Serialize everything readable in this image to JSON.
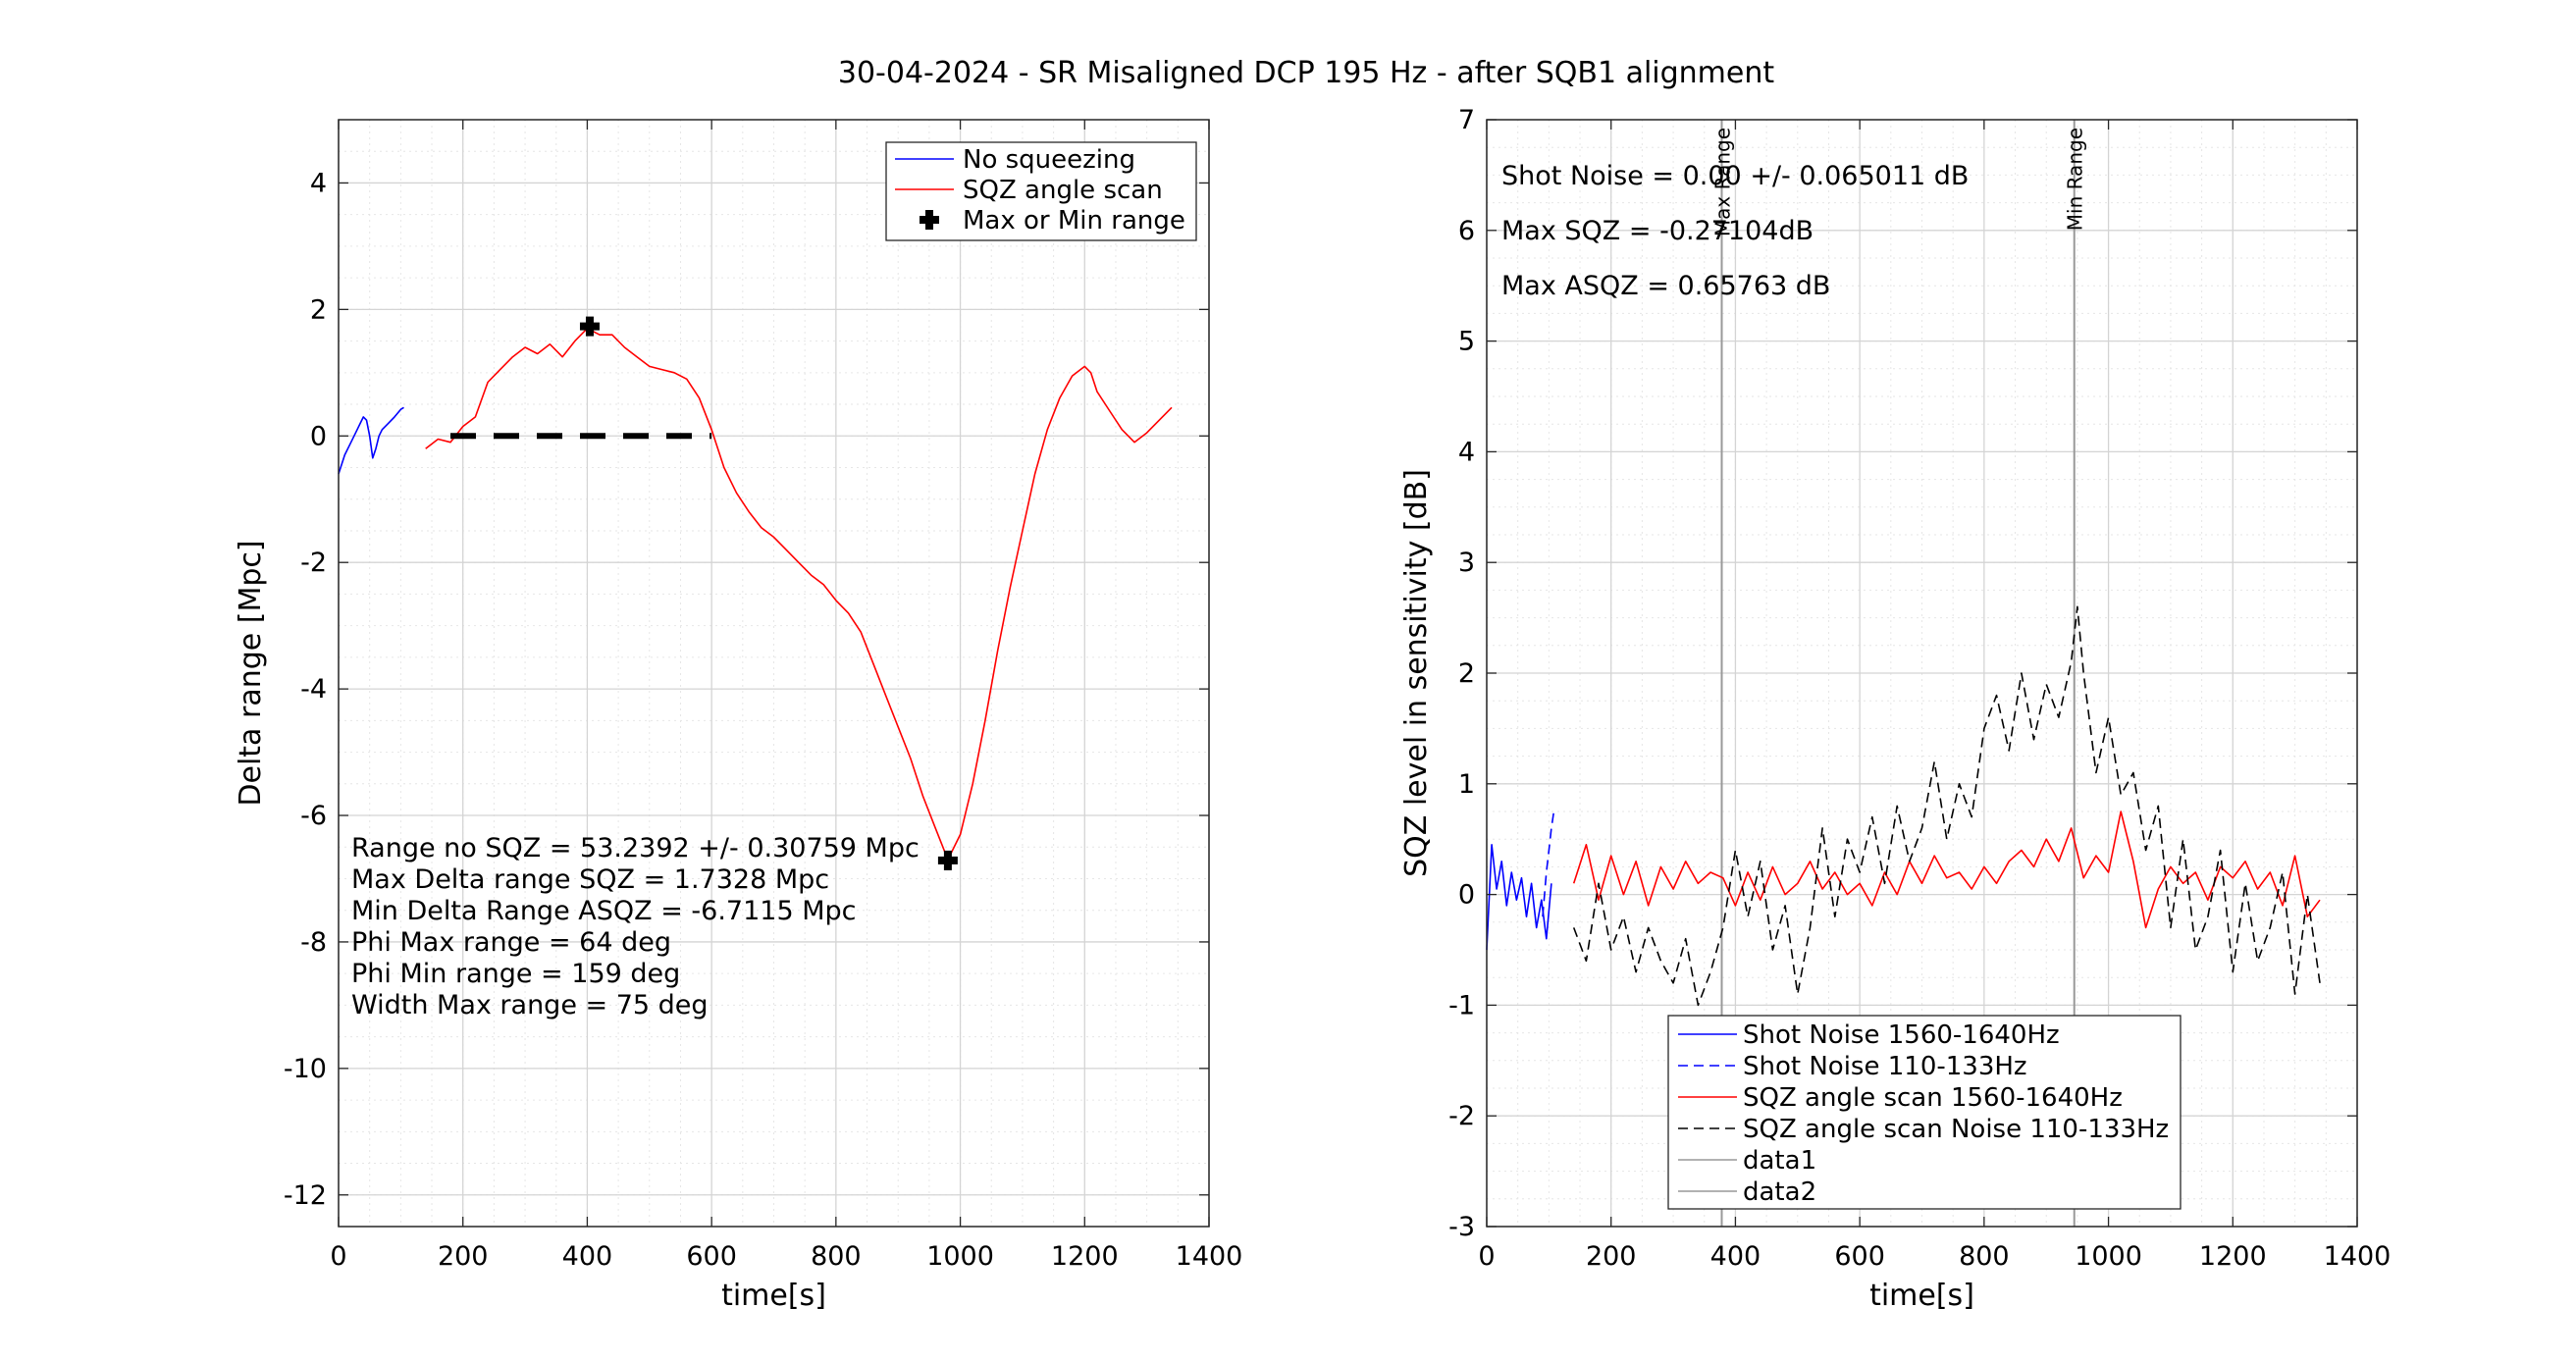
{
  "figure_title": "30-04-2024 - SR Misaligned DCP 195 Hz - after SQB1 alignment",
  "chart_data": [
    {
      "type": "line",
      "xlabel": "time[s]",
      "ylabel": "Delta range [Mpc]",
      "xlim": [
        0,
        1400
      ],
      "ylim": [
        -12.5,
        5
      ],
      "xticks": [
        0,
        200,
        400,
        600,
        800,
        1000,
        1200,
        1400
      ],
      "yticks": [
        -12,
        -10,
        -8,
        -6,
        -4,
        -2,
        0,
        2,
        4
      ],
      "grid": "on-with-minor",
      "legend_position": "top-right",
      "legend": [
        {
          "label": "No squeezing",
          "color": "#0000ff",
          "style": "solid"
        },
        {
          "label": "SQZ angle  scan",
          "color": "#ff0000",
          "style": "solid"
        },
        {
          "label": "Max or Min range",
          "color": "#000000",
          "style": "plus-marker"
        }
      ],
      "series": [
        {
          "name": "No squeezing",
          "color": "#0000ff",
          "x": [
            0,
            10,
            20,
            30,
            40,
            45,
            50,
            55,
            60,
            65,
            70,
            80,
            90,
            100,
            105
          ],
          "y": [
            -0.6,
            -0.3,
            -0.1,
            0.1,
            0.3,
            0.25,
            0.0,
            -0.35,
            -0.2,
            0.0,
            0.1,
            0.2,
            0.3,
            0.42,
            0.45
          ]
        },
        {
          "name": "SQZ angle  scan",
          "color": "#ff0000",
          "x": [
            140,
            160,
            180,
            200,
            220,
            240,
            260,
            280,
            300,
            320,
            340,
            360,
            380,
            400,
            420,
            440,
            460,
            480,
            500,
            520,
            540,
            560,
            580,
            600,
            620,
            640,
            660,
            680,
            700,
            720,
            740,
            760,
            780,
            800,
            820,
            840,
            860,
            880,
            900,
            920,
            940,
            960,
            980,
            1000,
            1020,
            1040,
            1060,
            1080,
            1100,
            1120,
            1140,
            1160,
            1180,
            1200,
            1210,
            1220,
            1240,
            1260,
            1280,
            1300,
            1320,
            1340
          ],
          "y": [
            -0.2,
            -0.05,
            -0.1,
            0.15,
            0.3,
            0.85,
            1.05,
            1.25,
            1.4,
            1.3,
            1.45,
            1.25,
            1.5,
            1.7,
            1.6,
            1.6,
            1.4,
            1.25,
            1.1,
            1.05,
            1.0,
            0.9,
            0.6,
            0.1,
            -0.5,
            -0.9,
            -1.2,
            -1.45,
            -1.6,
            -1.8,
            -2.0,
            -2.2,
            -2.35,
            -2.6,
            -2.8,
            -3.1,
            -3.6,
            -4.1,
            -4.6,
            -5.1,
            -5.7,
            -6.2,
            -6.7,
            -6.3,
            -5.5,
            -4.5,
            -3.4,
            -2.4,
            -1.5,
            -0.6,
            0.1,
            0.6,
            0.95,
            1.1,
            1.0,
            0.7,
            0.4,
            0.1,
            -0.1,
            0.05,
            0.25,
            0.45
          ]
        },
        {
          "name": "Width",
          "color": "#000000",
          "style": "dashed",
          "x": [
            180,
            600
          ],
          "y": [
            0,
            0
          ]
        }
      ],
      "markers": [
        {
          "x": 404,
          "y": 1.7328
        },
        {
          "x": 980,
          "y": -6.7115
        }
      ],
      "annotations": [
        "Range no SQZ = 53.2392 +/- 0.30759 Mpc",
        "Max Delta range SQZ = 1.7328 Mpc",
        "Min Delta Range ASQZ = -6.7115 Mpc",
        "Phi Max range = 64 deg",
        "Phi Min range = 159 deg",
        "Width Max range = 75 deg"
      ]
    },
    {
      "type": "line",
      "xlabel": "time[s]",
      "ylabel": "SQZ level in sensitivity [dB]",
      "xlim": [
        0,
        1400
      ],
      "ylim": [
        -3,
        7
      ],
      "xticks": [
        0,
        200,
        400,
        600,
        800,
        1000,
        1200,
        1400
      ],
      "yticks": [
        -3,
        -2,
        -1,
        0,
        1,
        2,
        3,
        4,
        5,
        6,
        7
      ],
      "grid": "on-with-minor",
      "legend_position": "bottom-center",
      "legend": [
        {
          "label": "Shot Noise 1560-1640Hz",
          "color": "#0000ff",
          "style": "solid"
        },
        {
          "label": "Shot Noise 110-133Hz",
          "color": "#0000ff",
          "style": "dashed"
        },
        {
          "label": "SQZ angle scan 1560-1640Hz",
          "color": "#ff0000",
          "style": "solid"
        },
        {
          "label": "SQZ angle scan Noise 110-133Hz",
          "color": "#000000",
          "style": "dashed"
        },
        {
          "label": "data1",
          "color": "#999999",
          "style": "solid"
        },
        {
          "label": "data2",
          "color": "#999999",
          "style": "solid"
        }
      ],
      "vlines": [
        {
          "x": 378,
          "label": "Max Range",
          "color": "#999999"
        },
        {
          "x": 945,
          "label": "Min Range",
          "color": "#999999"
        }
      ],
      "series": [
        {
          "name": "Shot Noise 1560-1640Hz",
          "color": "#0000ff",
          "style": "solid",
          "x": [
            0,
            8,
            16,
            24,
            32,
            40,
            48,
            56,
            64,
            72,
            80,
            88,
            96,
            104
          ],
          "y": [
            -0.5,
            0.45,
            0.05,
            0.3,
            -0.1,
            0.2,
            -0.05,
            0.15,
            -0.2,
            0.1,
            -0.3,
            -0.05,
            -0.4,
            0.1
          ]
        },
        {
          "name": "Shot Noise 110-133Hz",
          "color": "#0000ff",
          "style": "dashed",
          "x": [
            90,
            96,
            100,
            104,
            108
          ],
          "y": [
            -0.2,
            0.2,
            0.4,
            0.6,
            0.75
          ]
        },
        {
          "name": "SQZ angle scan 1560-1640Hz",
          "color": "#ff0000",
          "style": "solid",
          "x": [
            140,
            160,
            180,
            200,
            220,
            240,
            260,
            280,
            300,
            320,
            340,
            360,
            380,
            400,
            420,
            440,
            460,
            480,
            500,
            520,
            540,
            560,
            580,
            600,
            620,
            640,
            660,
            680,
            700,
            720,
            740,
            760,
            780,
            800,
            820,
            840,
            860,
            880,
            900,
            920,
            940,
            960,
            980,
            1000,
            1020,
            1040,
            1060,
            1080,
            1100,
            1120,
            1140,
            1160,
            1180,
            1200,
            1220,
            1240,
            1260,
            1280,
            1300,
            1320,
            1340
          ],
          "y": [
            0.1,
            0.45,
            -0.05,
            0.35,
            0.0,
            0.3,
            -0.1,
            0.25,
            0.05,
            0.3,
            0.1,
            0.2,
            0.15,
            -0.1,
            0.2,
            -0.05,
            0.25,
            0.0,
            0.1,
            0.3,
            0.05,
            0.2,
            0.0,
            0.1,
            -0.1,
            0.2,
            0.0,
            0.3,
            0.1,
            0.35,
            0.15,
            0.2,
            0.05,
            0.25,
            0.1,
            0.3,
            0.4,
            0.25,
            0.5,
            0.3,
            0.6,
            0.15,
            0.35,
            0.2,
            0.75,
            0.3,
            -0.3,
            0.05,
            0.25,
            0.1,
            0.2,
            -0.05,
            0.25,
            0.15,
            0.3,
            0.05,
            0.2,
            -0.1,
            0.35,
            -0.2,
            -0.05
          ]
        },
        {
          "name": "SQZ angle scan Noise 110-133Hz",
          "color": "#000000",
          "style": "dashed",
          "x": [
            140,
            160,
            180,
            200,
            220,
            240,
            260,
            280,
            300,
            320,
            340,
            360,
            380,
            400,
            420,
            440,
            460,
            480,
            500,
            520,
            540,
            560,
            580,
            600,
            620,
            640,
            660,
            680,
            700,
            720,
            740,
            760,
            780,
            800,
            820,
            840,
            860,
            880,
            900,
            920,
            940,
            950,
            960,
            980,
            1000,
            1020,
            1040,
            1060,
            1080,
            1100,
            1120,
            1140,
            1160,
            1180,
            1200,
            1220,
            1240,
            1260,
            1280,
            1300,
            1320,
            1340
          ],
          "y": [
            -0.3,
            -0.6,
            0.1,
            -0.5,
            -0.2,
            -0.7,
            -0.3,
            -0.6,
            -0.8,
            -0.4,
            -1.0,
            -0.7,
            -0.3,
            0.4,
            -0.2,
            0.3,
            -0.5,
            -0.1,
            -0.9,
            -0.3,
            0.6,
            -0.2,
            0.5,
            0.2,
            0.7,
            0.1,
            0.8,
            0.3,
            0.6,
            1.2,
            0.5,
            1.0,
            0.7,
            1.5,
            1.8,
            1.3,
            2.0,
            1.4,
            1.9,
            1.6,
            2.1,
            2.6,
            2.0,
            1.1,
            1.6,
            0.9,
            1.1,
            0.4,
            0.8,
            -0.3,
            0.5,
            -0.5,
            -0.2,
            0.4,
            -0.7,
            0.1,
            -0.6,
            -0.3,
            0.2,
            -0.9,
            0.0,
            -0.8
          ]
        }
      ],
      "annotations": [
        "Shot Noise = 0.00 +/- 0.065011 dB",
        "Max  SQZ = -0.27104dB",
        "Max ASQZ = 0.65763 dB"
      ]
    }
  ]
}
